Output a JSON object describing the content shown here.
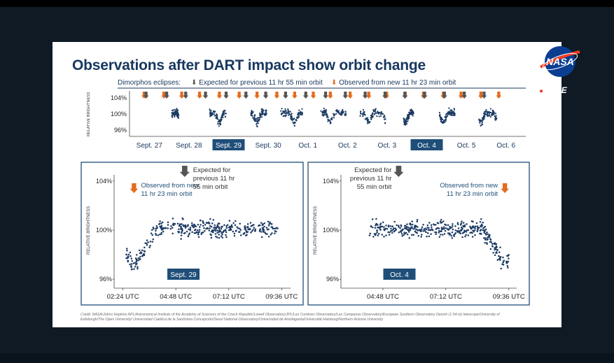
{
  "slide": {
    "title": "Observations after DART impact show orbit change",
    "eclipses_label": "Dimorphos eclipses:",
    "expected_label": "Expected for previous 11 hr 55 min orbit",
    "observed_label": "Observed from new 11 hr 23 min orbit",
    "credit": "Credit: NASA/Johns Hopkins APL/Astronomical Institute of the Academy of Sciences of the Czech Republic/Lowell Observatory/JPL/Las Cumbres Observatory/Las Campanas Observatory/European Southern Observatory Danish (1.54-m) telescope/University of Edinburgh/The Open University/ Universidad Católica de la Santísima Concepción/Seoul National Observatory/Universidad de Antofagasta/Universität Hamburg/Northern Arizona University"
  },
  "broadcast": {
    "logo_text": "NASA",
    "live_text": "LIVE"
  },
  "colors": {
    "navy": "#17375e",
    "points": "#1c3b63",
    "observed_arrow": "#e46c1e",
    "expected_arrow": "#555555",
    "highlight": "#1f4e79"
  },
  "chart_data": [
    {
      "type": "scatter",
      "title": "",
      "ylabel": "RELATIVE BRIGHTNESS",
      "ylim": [
        95,
        105
      ],
      "yticks": [
        "104%",
        "100%",
        "96%"
      ],
      "ytick_values": [
        104,
        100,
        96
      ],
      "xlabels": [
        "Sept. 27",
        "Sept. 28",
        "Sept. 29",
        "Sept. 30",
        "Oct. 1",
        "Oct. 2",
        "Oct. 3",
        "Oct. 4",
        "Oct. 5",
        "Oct. 6"
      ],
      "highlighted": [
        "Sept. 29",
        "Oct. 4"
      ],
      "segments_days": [
        [
          1.05,
          1.22
        ],
        [
          2.0,
          2.42
        ],
        [
          3.05,
          3.45
        ],
        [
          3.8,
          4.35
        ],
        [
          4.8,
          5.45
        ],
        [
          5.8,
          6.45
        ],
        [
          6.9,
          7.15
        ],
        [
          7.8,
          8.2
        ],
        [
          8.8,
          9.25
        ]
      ],
      "eclipse_days_observed": [
        0.35,
        0.85,
        1.3,
        1.75,
        2.25,
        2.75,
        3.2,
        3.7,
        4.15,
        4.62,
        5.05,
        5.55,
        6.02,
        6.47,
        6.94,
        7.4,
        7.9,
        8.35,
        8.85,
        9.3
      ],
      "eclipse_days_expected": [
        0.4,
        0.92,
        1.4,
        1.9,
        2.42,
        2.92,
        3.42,
        3.92,
        4.43,
        4.93,
        5.43,
        5.93,
        6.43,
        6.93,
        7.43,
        7.93,
        8.43,
        8.93
      ]
    },
    {
      "type": "scatter",
      "title": "",
      "label": "Sept. 29",
      "ylabel": "RELATIVE BRIGHTNESS",
      "ylim": [
        95.5,
        104.5
      ],
      "yticks": [
        "104%",
        "100%",
        "96%"
      ],
      "ytick_values": [
        104,
        100,
        96
      ],
      "xticks": [
        "02:24 UTC",
        "04:48 UTC",
        "07:12 UTC",
        "09:36 UTC"
      ],
      "xtick_hours": [
        2.4,
        4.8,
        7.2,
        9.6
      ],
      "xlim_hours": [
        2.0,
        10.0
      ],
      "observed_hours": 2.9,
      "expected_hours": 5.2,
      "observed_annotation": "Observed from new\n11 hr 23 min orbit",
      "expected_annotation": "Expected for\nprevious 11 hr\n55 min orbit"
    },
    {
      "type": "scatter",
      "title": "",
      "label": "Oct. 4",
      "ylabel": "RELATIVE BRIGHTNESS",
      "ylim": [
        95.5,
        104.5
      ],
      "yticks": [
        "104%",
        "100%",
        "96%"
      ],
      "ytick_values": [
        104,
        100,
        96
      ],
      "xticks": [
        "04:48 UTC",
        "07:12 UTC",
        "09:36 UTC"
      ],
      "xtick_hours": [
        4.8,
        7.2,
        9.6
      ],
      "xlim_hours": [
        3.2,
        9.9
      ],
      "observed_hours": 9.45,
      "expected_hours": 5.4,
      "observed_annotation": "Observed from new\n11 hr 23 min orbit",
      "expected_annotation": "Expected for\nprevious 11 hr\n55 min orbit"
    }
  ]
}
